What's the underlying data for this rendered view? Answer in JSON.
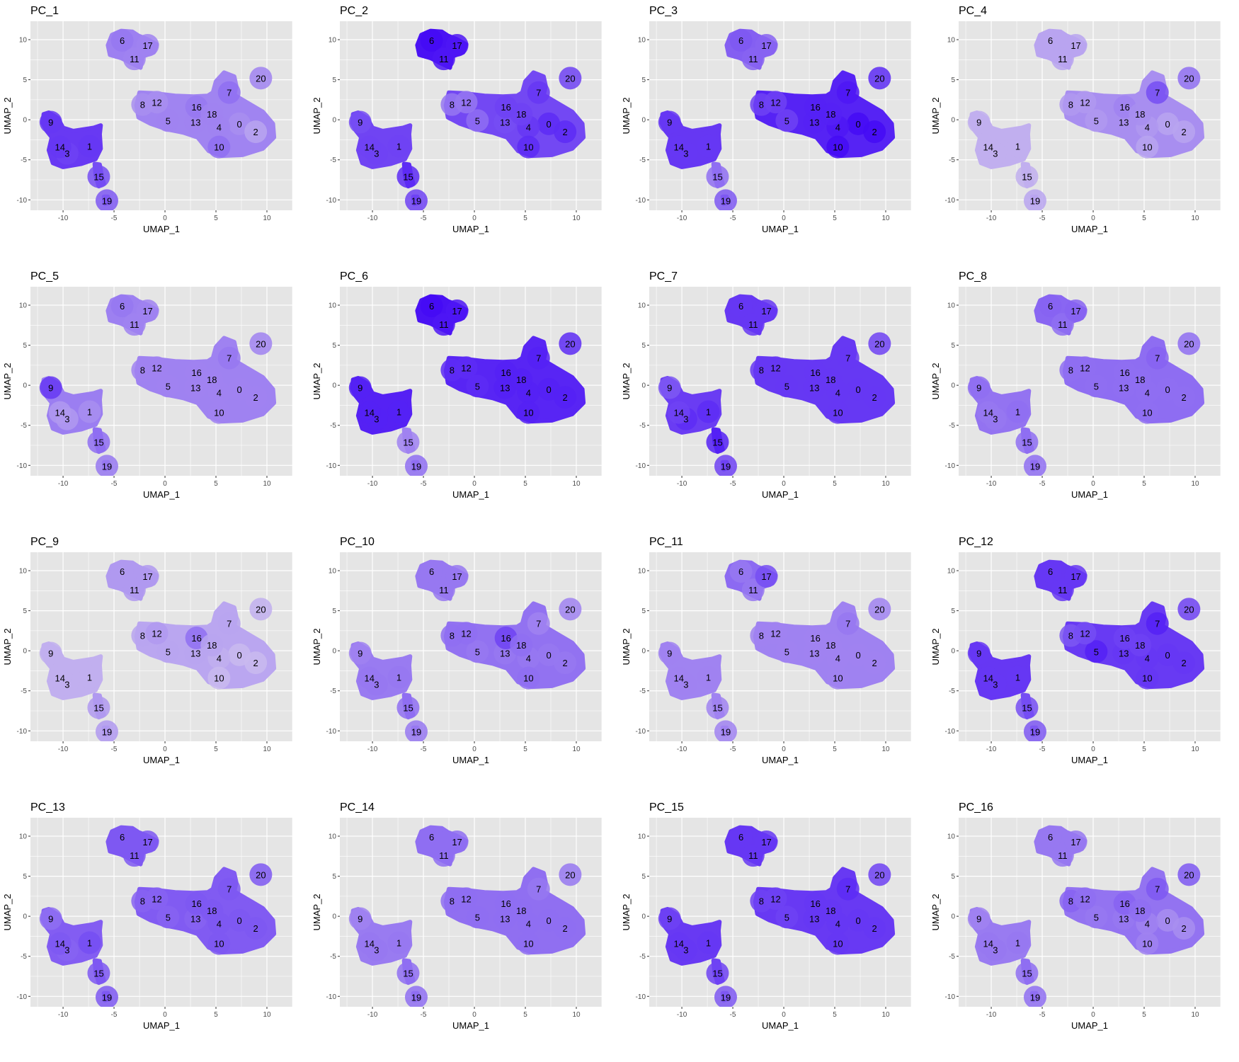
{
  "chart_data": {
    "type": "scatter",
    "shared": {
      "xlabel": "UMAP_1",
      "ylabel": "UMAP_2",
      "xlim": [
        -13.2,
        12.5
      ],
      "ylim": [
        -11.3,
        12.3
      ],
      "xticks": [
        -10,
        -5,
        0,
        5,
        10
      ],
      "yticks": [
        -10,
        -5,
        0,
        5,
        10
      ],
      "panel_background": "#e5e5e5",
      "grid_color": "#ffffff",
      "grid": true,
      "color_low": "#e2dbee",
      "color_high": "#3c00f5",
      "cluster_labels": [
        {
          "label": "0",
          "x": 7.3,
          "y": -0.5
        },
        {
          "label": "1",
          "x": -7.4,
          "y": -3.3
        },
        {
          "label": "2",
          "x": 8.9,
          "y": -1.5
        },
        {
          "label": "3",
          "x": -9.6,
          "y": -4.2
        },
        {
          "label": "4",
          "x": 5.3,
          "y": -0.9
        },
        {
          "label": "5",
          "x": 0.3,
          "y": -0.1
        },
        {
          "label": "6",
          "x": -4.2,
          "y": 9.9
        },
        {
          "label": "7",
          "x": 6.3,
          "y": 3.4
        },
        {
          "label": "8",
          "x": -2.2,
          "y": 1.9
        },
        {
          "label": "9",
          "x": -11.2,
          "y": -0.3
        },
        {
          "label": "10",
          "x": 5.3,
          "y": -3.4
        },
        {
          "label": "11",
          "x": -3.0,
          "y": 7.6
        },
        {
          "label": "12",
          "x": -0.8,
          "y": 2.2
        },
        {
          "label": "13",
          "x": 3.0,
          "y": -0.3
        },
        {
          "label": "14",
          "x": -10.3,
          "y": -3.4
        },
        {
          "label": "15",
          "x": -6.5,
          "y": -7.1
        },
        {
          "label": "16",
          "x": 3.1,
          "y": 1.6
        },
        {
          "label": "17",
          "x": -1.7,
          "y": 9.3
        },
        {
          "label": "18",
          "x": 4.6,
          "y": 0.7
        },
        {
          "label": "19",
          "x": -5.7,
          "y": -10.1
        },
        {
          "label": "20",
          "x": 9.4,
          "y": 5.2
        }
      ]
    },
    "panels": [
      {
        "title": "PC_1",
        "cluster_intensity": {
          "0": 0.35,
          "1": 0.75,
          "2": 0.25,
          "3": 0.7,
          "4": 0.4,
          "5": 0.4,
          "6": 0.45,
          "7": 0.5,
          "8": 0.35,
          "9": 0.75,
          "10": 0.5,
          "11": 0.4,
          "12": 0.35,
          "13": 0.4,
          "14": 0.75,
          "15": 0.65,
          "16": 0.45,
          "17": 0.4,
          "18": 0.4,
          "19": 0.6,
          "20": 0.4
        }
      },
      {
        "title": "PC_2",
        "cluster_intensity": {
          "0": 0.8,
          "1": 0.7,
          "2": 0.8,
          "3": 0.7,
          "4": 0.75,
          "5": 0.5,
          "6": 0.95,
          "7": 0.75,
          "8": 0.45,
          "9": 0.65,
          "10": 0.8,
          "11": 0.9,
          "12": 0.45,
          "13": 0.65,
          "14": 0.7,
          "15": 0.8,
          "16": 0.7,
          "17": 0.9,
          "18": 0.7,
          "19": 0.7,
          "20": 0.7
        }
      },
      {
        "title": "PC_3",
        "cluster_intensity": {
          "0": 0.95,
          "1": 0.75,
          "2": 0.95,
          "3": 0.75,
          "4": 0.9,
          "5": 0.7,
          "6": 0.6,
          "7": 0.9,
          "8": 0.7,
          "9": 0.75,
          "10": 0.95,
          "11": 0.55,
          "12": 0.7,
          "13": 0.85,
          "14": 0.75,
          "15": 0.5,
          "16": 0.85,
          "17": 0.55,
          "18": 0.85,
          "19": 0.6,
          "20": 0.8
        }
      },
      {
        "title": "PC_4",
        "cluster_intensity": {
          "0": 0.25,
          "1": 0.2,
          "2": 0.25,
          "3": 0.2,
          "4": 0.3,
          "5": 0.3,
          "6": 0.25,
          "7": 0.65,
          "8": 0.3,
          "9": 0.2,
          "10": 0.25,
          "11": 0.25,
          "12": 0.3,
          "13": 0.35,
          "14": 0.2,
          "15": 0.2,
          "16": 0.4,
          "17": 0.25,
          "18": 0.35,
          "19": 0.25,
          "20": 0.5
        }
      },
      {
        "title": "PC_5",
        "cluster_intensity": {
          "0": 0.4,
          "1": 0.35,
          "2": 0.4,
          "3": 0.3,
          "4": 0.4,
          "5": 0.4,
          "6": 0.45,
          "7": 0.45,
          "8": 0.4,
          "9": 0.75,
          "10": 0.4,
          "11": 0.4,
          "12": 0.4,
          "13": 0.4,
          "14": 0.3,
          "15": 0.5,
          "16": 0.4,
          "17": 0.4,
          "18": 0.4,
          "19": 0.45,
          "20": 0.4
        }
      },
      {
        "title": "PC_6",
        "cluster_intensity": {
          "0": 0.85,
          "1": 0.85,
          "2": 0.85,
          "3": 0.85,
          "4": 0.85,
          "5": 0.8,
          "6": 0.95,
          "7": 0.85,
          "8": 0.8,
          "9": 0.85,
          "10": 0.85,
          "11": 0.9,
          "12": 0.8,
          "13": 0.85,
          "14": 0.85,
          "15": 0.4,
          "16": 0.85,
          "17": 0.9,
          "18": 0.85,
          "19": 0.5,
          "20": 0.8
        }
      },
      {
        "title": "PC_7",
        "cluster_intensity": {
          "0": 0.75,
          "1": 0.8,
          "2": 0.75,
          "3": 0.8,
          "4": 0.75,
          "5": 0.75,
          "6": 0.75,
          "7": 0.75,
          "8": 0.75,
          "9": 0.6,
          "10": 0.75,
          "11": 0.75,
          "12": 0.75,
          "13": 0.75,
          "14": 0.7,
          "15": 0.85,
          "16": 0.75,
          "17": 0.75,
          "18": 0.75,
          "19": 0.7,
          "20": 0.7
        }
      },
      {
        "title": "PC_8",
        "cluster_intensity": {
          "0": 0.5,
          "1": 0.5,
          "2": 0.5,
          "3": 0.45,
          "4": 0.5,
          "5": 0.5,
          "6": 0.55,
          "7": 0.55,
          "8": 0.5,
          "9": 0.5,
          "10": 0.5,
          "11": 0.5,
          "12": 0.5,
          "13": 0.5,
          "14": 0.45,
          "15": 0.5,
          "16": 0.5,
          "17": 0.55,
          "18": 0.5,
          "19": 0.5,
          "20": 0.5
        }
      },
      {
        "title": "PC_9",
        "cluster_intensity": {
          "0": 0.15,
          "1": 0.2,
          "2": 0.15,
          "3": 0.2,
          "4": 0.2,
          "5": 0.25,
          "6": 0.3,
          "7": 0.25,
          "8": 0.25,
          "9": 0.2,
          "10": 0.15,
          "11": 0.3,
          "12": 0.3,
          "13": 0.25,
          "14": 0.2,
          "15": 0.3,
          "16": 0.5,
          "17": 0.3,
          "18": 0.25,
          "19": 0.3,
          "20": 0.2
        }
      },
      {
        "title": "PC_10",
        "cluster_intensity": {
          "0": 0.45,
          "1": 0.45,
          "2": 0.45,
          "3": 0.45,
          "4": 0.45,
          "5": 0.45,
          "6": 0.45,
          "7": 0.4,
          "8": 0.5,
          "9": 0.4,
          "10": 0.5,
          "11": 0.45,
          "12": 0.5,
          "13": 0.45,
          "14": 0.45,
          "15": 0.5,
          "16": 0.7,
          "17": 0.45,
          "18": 0.5,
          "19": 0.45,
          "20": 0.4
        }
      },
      {
        "title": "PC_11",
        "cluster_intensity": {
          "0": 0.4,
          "1": 0.4,
          "2": 0.4,
          "3": 0.4,
          "4": 0.4,
          "5": 0.4,
          "6": 0.45,
          "7": 0.45,
          "8": 0.4,
          "9": 0.4,
          "10": 0.4,
          "11": 0.45,
          "12": 0.4,
          "13": 0.4,
          "14": 0.4,
          "15": 0.4,
          "16": 0.4,
          "17": 0.65,
          "18": 0.4,
          "19": 0.4,
          "20": 0.4
        }
      },
      {
        "title": "PC_12",
        "cluster_intensity": {
          "0": 0.75,
          "1": 0.75,
          "2": 0.75,
          "3": 0.75,
          "4": 0.75,
          "5": 0.85,
          "6": 0.75,
          "7": 0.85,
          "8": 0.6,
          "9": 0.75,
          "10": 0.75,
          "11": 0.75,
          "12": 0.65,
          "13": 0.75,
          "14": 0.75,
          "15": 0.65,
          "16": 0.7,
          "17": 0.75,
          "18": 0.7,
          "19": 0.6,
          "20": 0.7
        }
      },
      {
        "title": "PC_13",
        "cluster_intensity": {
          "0": 0.6,
          "1": 0.65,
          "2": 0.6,
          "3": 0.55,
          "4": 0.6,
          "5": 0.55,
          "6": 0.6,
          "7": 0.6,
          "8": 0.55,
          "9": 0.5,
          "10": 0.6,
          "11": 0.6,
          "12": 0.55,
          "13": 0.55,
          "14": 0.6,
          "15": 0.6,
          "16": 0.6,
          "17": 0.6,
          "18": 0.6,
          "19": 0.6,
          "20": 0.6
        }
      },
      {
        "title": "PC_14",
        "cluster_intensity": {
          "0": 0.5,
          "1": 0.45,
          "2": 0.5,
          "3": 0.45,
          "4": 0.5,
          "5": 0.5,
          "6": 0.5,
          "7": 0.45,
          "8": 0.5,
          "9": 0.4,
          "10": 0.5,
          "11": 0.5,
          "12": 0.5,
          "13": 0.5,
          "14": 0.45,
          "15": 0.5,
          "16": 0.5,
          "17": 0.5,
          "18": 0.5,
          "19": 0.5,
          "20": 0.45
        }
      },
      {
        "title": "PC_15",
        "cluster_intensity": {
          "0": 0.75,
          "1": 0.75,
          "2": 0.75,
          "3": 0.75,
          "4": 0.75,
          "5": 0.7,
          "6": 0.75,
          "7": 0.8,
          "8": 0.7,
          "9": 0.7,
          "10": 0.75,
          "11": 0.75,
          "12": 0.7,
          "13": 0.75,
          "14": 0.75,
          "15": 0.7,
          "16": 0.75,
          "17": 0.75,
          "18": 0.75,
          "19": 0.6,
          "20": 0.7
        }
      },
      {
        "title": "PC_16",
        "cluster_intensity": {
          "0": 0.35,
          "1": 0.45,
          "2": 0.35,
          "3": 0.45,
          "4": 0.4,
          "5": 0.45,
          "6": 0.45,
          "7": 0.6,
          "8": 0.55,
          "9": 0.4,
          "10": 0.4,
          "11": 0.45,
          "12": 0.5,
          "13": 0.45,
          "14": 0.45,
          "15": 0.5,
          "16": 0.55,
          "17": 0.45,
          "18": 0.5,
          "19": 0.5,
          "20": 0.6
        }
      }
    ]
  }
}
